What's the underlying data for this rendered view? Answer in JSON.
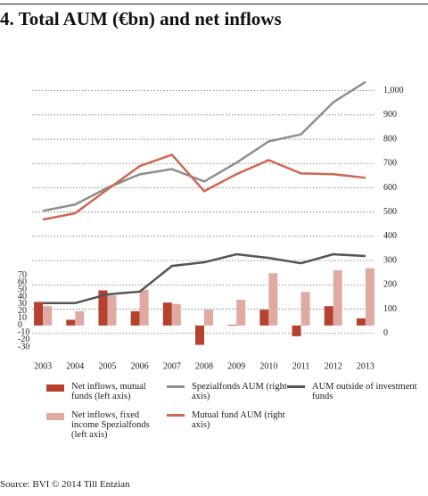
{
  "chart_data": {
    "type": "bar-line",
    "title": "4. Total AUM (€bn) and net inflows",
    "source": "Source: BVI © 2014 Till Entzian",
    "categories": [
      "2003",
      "2004",
      "2005",
      "2006",
      "2007",
      "2008",
      "2009",
      "2010",
      "2011",
      "2012",
      "2013"
    ],
    "series": [
      {
        "name": "Net inflows, mutual funds (left axis)",
        "type": "bar",
        "color": "#b5412f",
        "values": [
          33,
          8,
          49,
          20,
          32,
          -27,
          1,
          22,
          -15,
          27,
          10
        ]
      },
      {
        "name": "Spezialfonds AUM (right axis)",
        "type": "line",
        "axis": "y2",
        "color": "#8e8e8e",
        "values": [
          505,
          531,
          600,
          655,
          677,
          626,
          703,
          791,
          820,
          952,
          1036
        ]
      },
      {
        "name": "AUM outside of investment funds",
        "type": "line",
        "axis": "y2",
        "color": "#555555",
        "values": [
          125,
          125,
          161,
          172,
          278,
          293,
          326,
          311,
          289,
          326,
          319
        ]
      },
      {
        "name": "Net inflows, fixed income Spezialfonds (left axis)",
        "type": "bar",
        "color": "#e0aaa2",
        "values": [
          27,
          20,
          42,
          50,
          30,
          22,
          36,
          73,
          47,
          77,
          80
        ]
      },
      {
        "name": "Mutual fund AUM (right axis)",
        "type": "line",
        "axis": "y2",
        "color": "#cf6652",
        "values": [
          469,
          495,
          593,
          689,
          736,
          586,
          656,
          714,
          659,
          656,
          641
        ]
      }
    ],
    "ylim": [
      -45,
      345
    ],
    "yticks": [
      -30,
      -20,
      -10,
      0,
      10,
      20,
      30,
      40,
      50,
      60,
      70
    ],
    "y2lim": [
      -100,
      1050
    ],
    "y2ticks": [
      0,
      100,
      200,
      300,
      400,
      500,
      600,
      700,
      800,
      900,
      {
        "value": 1000,
        "label": "1,000"
      }
    ],
    "grid": true
  }
}
